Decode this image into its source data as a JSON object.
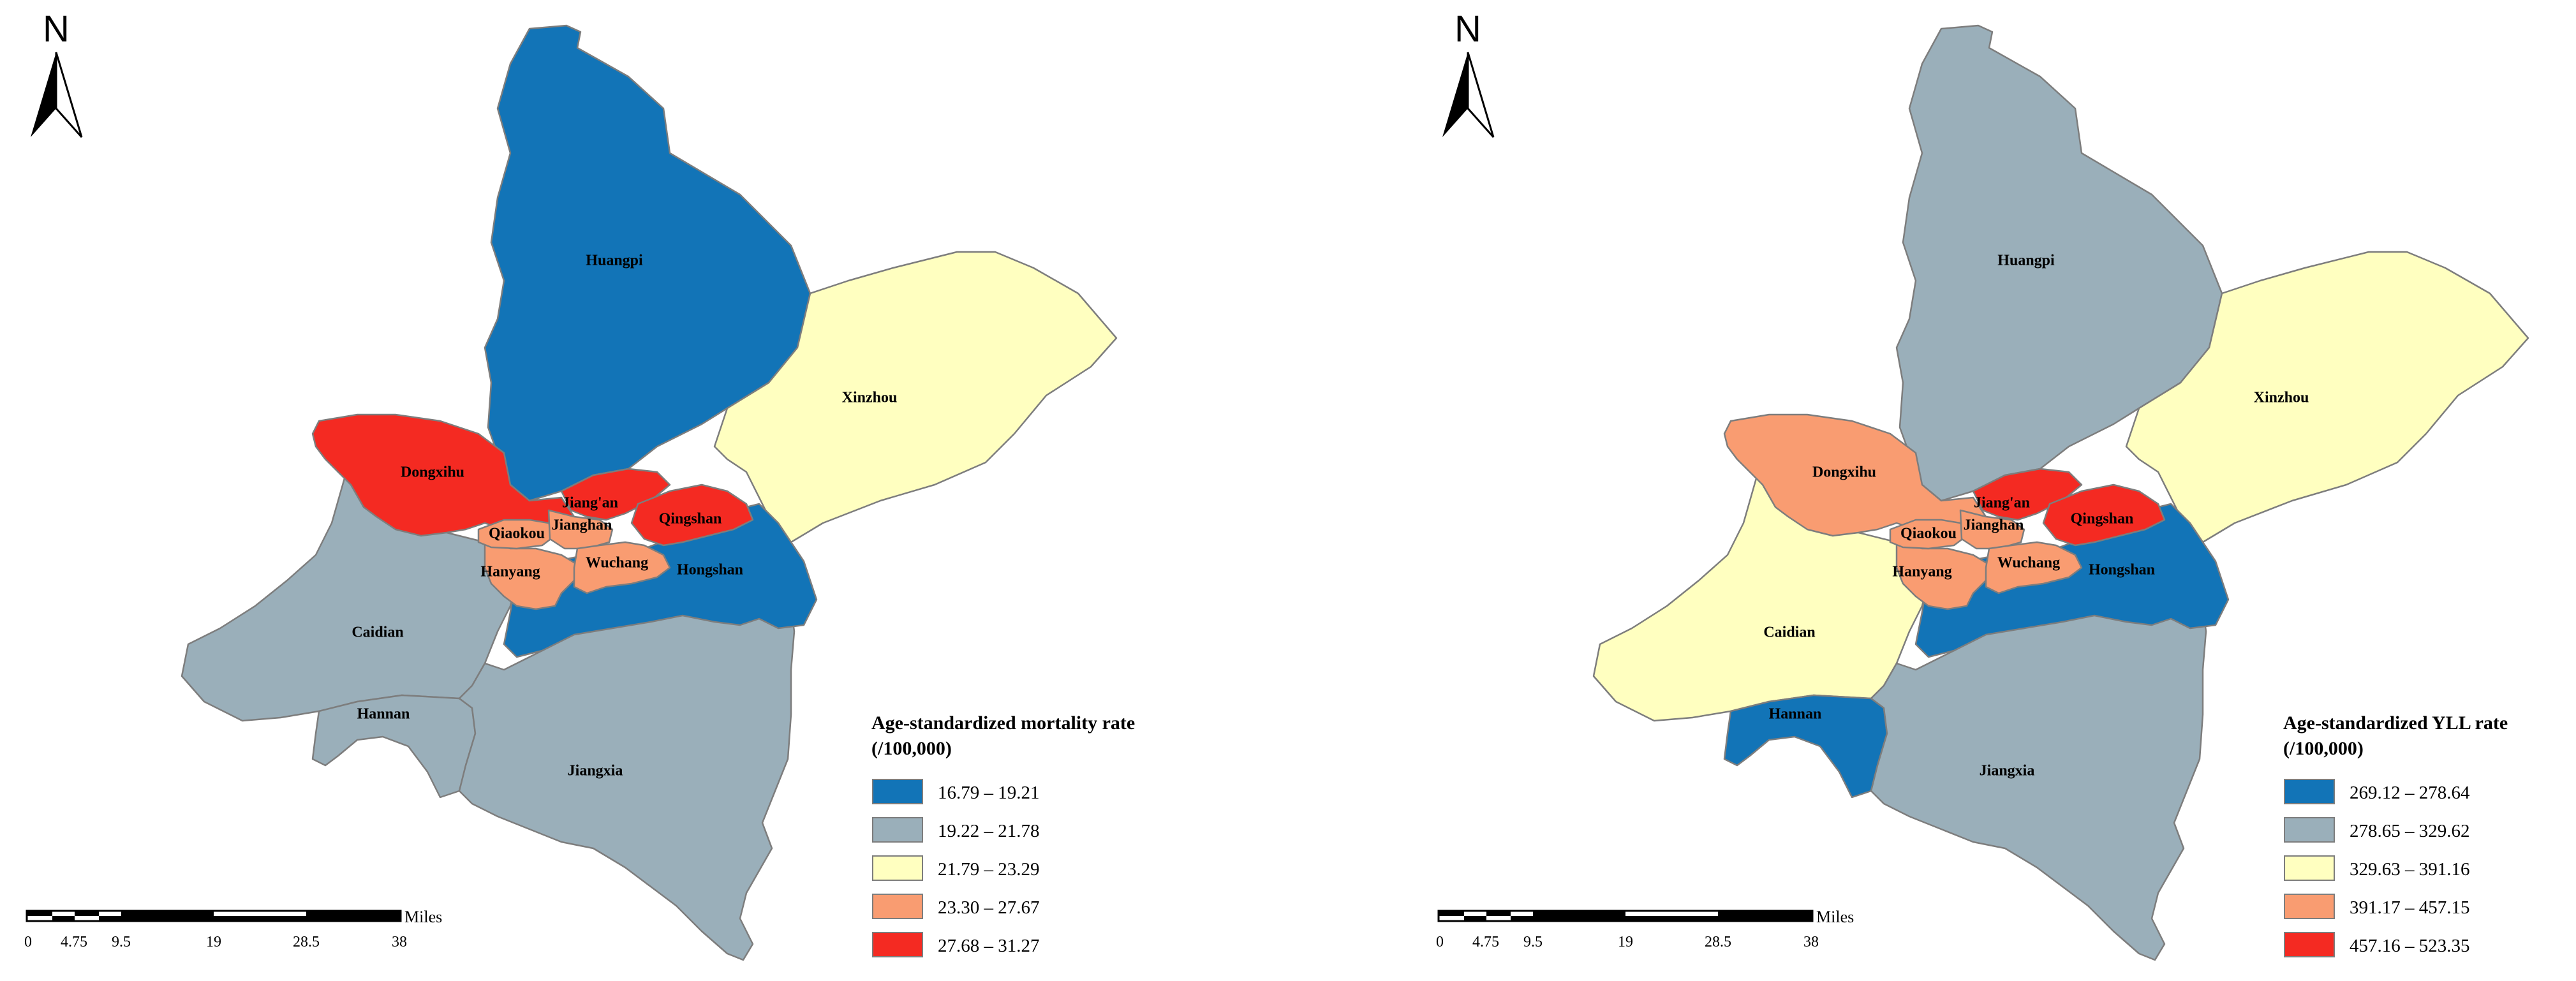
{
  "colors": {
    "class1": "#1274b7",
    "class2": "#9aafba",
    "class3": "#ffffc0",
    "class4": "#f99c71",
    "class5": "#f42a22"
  },
  "north_label": "N",
  "scale_bar": {
    "unit": "Miles",
    "ticks": [
      "0",
      "4.75",
      "9.5",
      "19",
      "28.5",
      "38"
    ]
  },
  "maps": [
    {
      "legend": {
        "title_line1": "Age-standardized mortality rate",
        "title_line2": "(/100,000)",
        "classes": [
          "16.79 – 19.21",
          "19.22 – 21.78",
          "21.79 – 23.29",
          "23.30 – 27.67",
          "27.68 – 31.27"
        ]
      },
      "districts": [
        {
          "name": "Huangpi",
          "class": 1
        },
        {
          "name": "Xinzhou",
          "class": 3
        },
        {
          "name": "Dongxihu",
          "class": 5
        },
        {
          "name": "Caidian",
          "class": 2
        },
        {
          "name": "Hannan",
          "class": 2
        },
        {
          "name": "Jiangxia",
          "class": 2
        },
        {
          "name": "Jiang'an",
          "class": 5
        },
        {
          "name": "Jianghan",
          "class": 4
        },
        {
          "name": "Qiaokou",
          "class": 4
        },
        {
          "name": "Hanyang",
          "class": 4
        },
        {
          "name": "Wuchang",
          "class": 4
        },
        {
          "name": "Qingshan",
          "class": 5
        },
        {
          "name": "Hongshan",
          "class": 1
        }
      ]
    },
    {
      "legend": {
        "title_line1": "Age-standardized YLL rate",
        "title_line2": "(/100,000)",
        "classes": [
          "269.12 – 278.64",
          "278.65 – 329.62",
          "329.63 – 391.16",
          "391.17 – 457.15",
          "457.16 – 523.35"
        ]
      },
      "districts": [
        {
          "name": "Huangpi",
          "class": 2
        },
        {
          "name": "Xinzhou",
          "class": 3
        },
        {
          "name": "Dongxihu",
          "class": 4
        },
        {
          "name": "Caidian",
          "class": 3
        },
        {
          "name": "Hannan",
          "class": 1
        },
        {
          "name": "Jiangxia",
          "class": 2
        },
        {
          "name": "Jiang'an",
          "class": 5
        },
        {
          "name": "Jianghan",
          "class": 4
        },
        {
          "name": "Qiaokou",
          "class": 4
        },
        {
          "name": "Hanyang",
          "class": 4
        },
        {
          "name": "Wuchang",
          "class": 4
        },
        {
          "name": "Qingshan",
          "class": 5
        },
        {
          "name": "Hongshan",
          "class": 1
        }
      ]
    }
  ]
}
